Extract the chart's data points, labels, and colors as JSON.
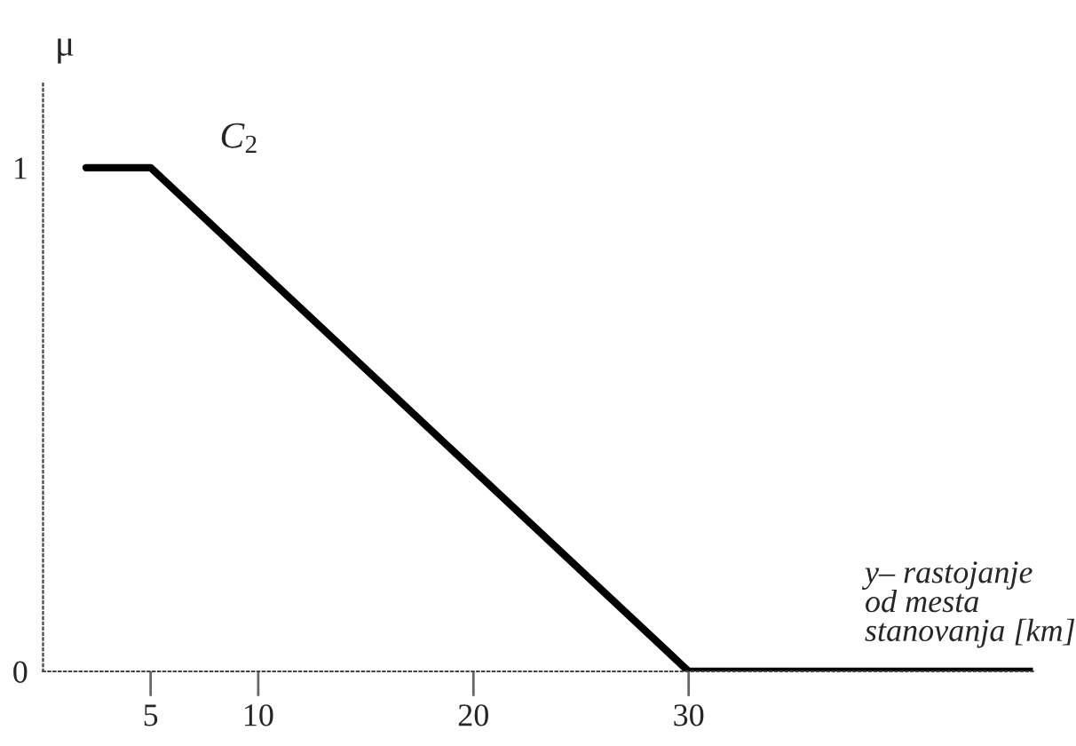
{
  "chart_data": {
    "type": "line",
    "xlabel": "y– rastojanje\nod mesta\nstanovanja [km]",
    "ylabel": "μ",
    "x": [
      2,
      5,
      30,
      46
    ],
    "series": [
      {
        "name": "C$_{2}$",
        "color": "#000000",
        "values": [
          1,
          1,
          0,
          0
        ]
      }
    ],
    "xlim": [
      0,
      46
    ],
    "ylim": [
      0,
      1.17
    ],
    "xticks": [
      5,
      10,
      20,
      30
    ],
    "yticks": [
      0,
      1
    ],
    "line_style": "solid",
    "marker": "none",
    "grid": false
  }
}
